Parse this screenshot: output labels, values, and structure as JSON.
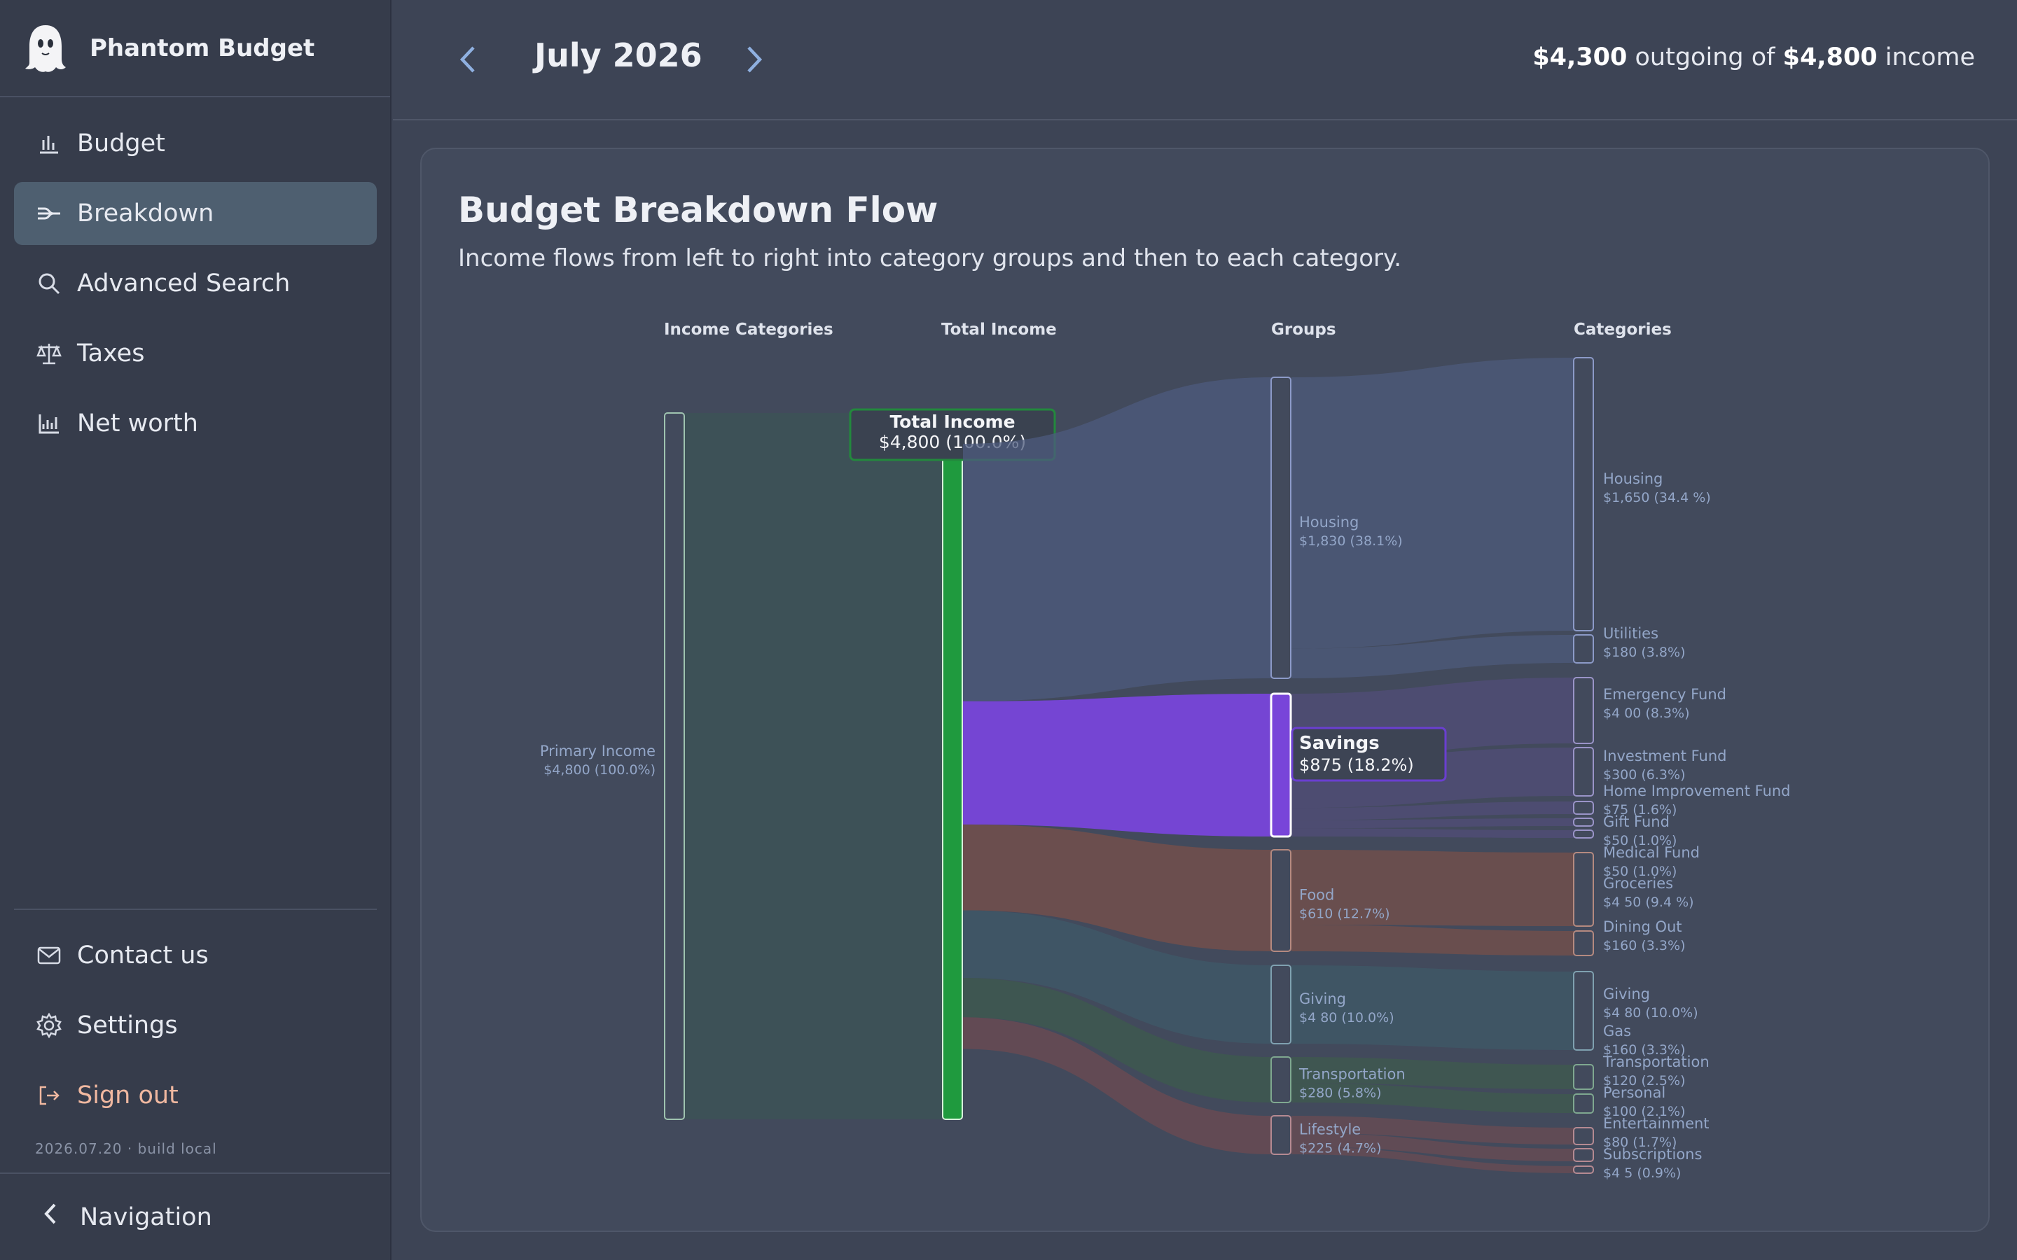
{
  "app": {
    "name": "Phantom Budget",
    "version": "2026.07.20 · build local"
  },
  "sidebar": {
    "items": [
      {
        "label": "Budget",
        "icon": "bar-chart-icon"
      },
      {
        "label": "Breakdown",
        "icon": "flow-icon",
        "active": true
      },
      {
        "label": "Advanced Search",
        "icon": "search-icon"
      },
      {
        "label": "Taxes",
        "icon": "scale-icon"
      },
      {
        "label": "Net worth",
        "icon": "line-chart-icon"
      }
    ],
    "bottom": [
      {
        "label": "Contact us",
        "icon": "mail-icon"
      },
      {
        "label": "Settings",
        "icon": "gear-icon"
      },
      {
        "label": "Sign out",
        "icon": "sign-out-icon"
      }
    ],
    "footer_label": "Navigation"
  },
  "header": {
    "month": "July 2026",
    "outgoing": "$4,300",
    "outgoing_text": "outgoing of",
    "income": "$4,800",
    "income_text": "income"
  },
  "card": {
    "title": "Budget Breakdown Flow",
    "subtitle": "Income flows from left to right into category groups and then to each category."
  },
  "colors": {
    "accent_green": "#1f9a3e",
    "savings_purple": "#7845d9",
    "housing": "#4e5b7e",
    "food": "#7a5049",
    "giving": "#3f5a68",
    "transport": "#3e5b4d"
  },
  "chart_data": {
    "type": "sankey",
    "columns": [
      "Income Categories",
      "Total Income",
      "Groups",
      "Categories"
    ],
    "income": [
      {
        "name": "Primary Income",
        "value": 4800,
        "label": "$4,800 (100.0%)"
      }
    ],
    "total": {
      "name": "Total Income",
      "value": 4800,
      "label": "$4,800 (100.0%)"
    },
    "groups": [
      {
        "name": "Housing",
        "value": 1830,
        "label": "$1,830 (38.1%)"
      },
      {
        "name": "Savings",
        "value": 875,
        "label": "$875 (18.2%)",
        "highlight": true
      },
      {
        "name": "Food",
        "value": 610,
        "label": "$610 (12.7%)"
      },
      {
        "name": "Giving",
        "value": 480,
        "label": "$4 80 (10.0%)"
      },
      {
        "name": "Transportation",
        "value": 280,
        "label": "$280 (5.8%)"
      },
      {
        "name": "Lifestyle",
        "value": 225,
        "label": "$225 (4.7%)"
      }
    ],
    "categories": [
      {
        "name": "Housing",
        "group": "Housing",
        "value": 1650,
        "label": "$1,650 (34.4 %)"
      },
      {
        "name": "Utilities",
        "group": "Housing",
        "value": 180,
        "label": "$180 (3.8%)"
      },
      {
        "name": "Emergency Fund",
        "group": "Savings",
        "value": 400,
        "label": "$4 00 (8.3%)"
      },
      {
        "name": "Investment Fund",
        "group": "Savings",
        "value": 300,
        "label": "$300 (6.3%)"
      },
      {
        "name": "Home Improvement Fund",
        "group": "Savings",
        "value": 75,
        "label": "$75 (1.6%)"
      },
      {
        "name": "Gift Fund",
        "group": "Savings",
        "value": 50,
        "label": "$50 (1.0%)"
      },
      {
        "name": "Medical Fund",
        "group": "Savings",
        "value": 50,
        "label": "$50 (1.0%)"
      },
      {
        "name": "Groceries",
        "group": "Food",
        "value": 450,
        "label": "$4 50 (9.4 %)"
      },
      {
        "name": "Dining Out",
        "group": "Food",
        "value": 160,
        "label": "$160 (3.3%)"
      },
      {
        "name": "Giving",
        "group": "Giving",
        "value": 480,
        "label": "$4 80 (10.0%)"
      },
      {
        "name": "Gas",
        "group": "Transportation",
        "value": 160,
        "label": "$160 (3.3%)"
      },
      {
        "name": "Transportation",
        "group": "Transportation",
        "value": 120,
        "label": "$120 (2.5%)"
      },
      {
        "name": "Personal",
        "group": "Lifestyle",
        "value": 100,
        "label": "$100 (2.1%)"
      },
      {
        "name": "Entertainment",
        "group": "Lifestyle",
        "value": 80,
        "label": "$80 (1.7%)"
      },
      {
        "name": "Subscriptions",
        "group": "Lifestyle",
        "value": 45,
        "label": "$4 5 (0.9%)"
      }
    ]
  }
}
